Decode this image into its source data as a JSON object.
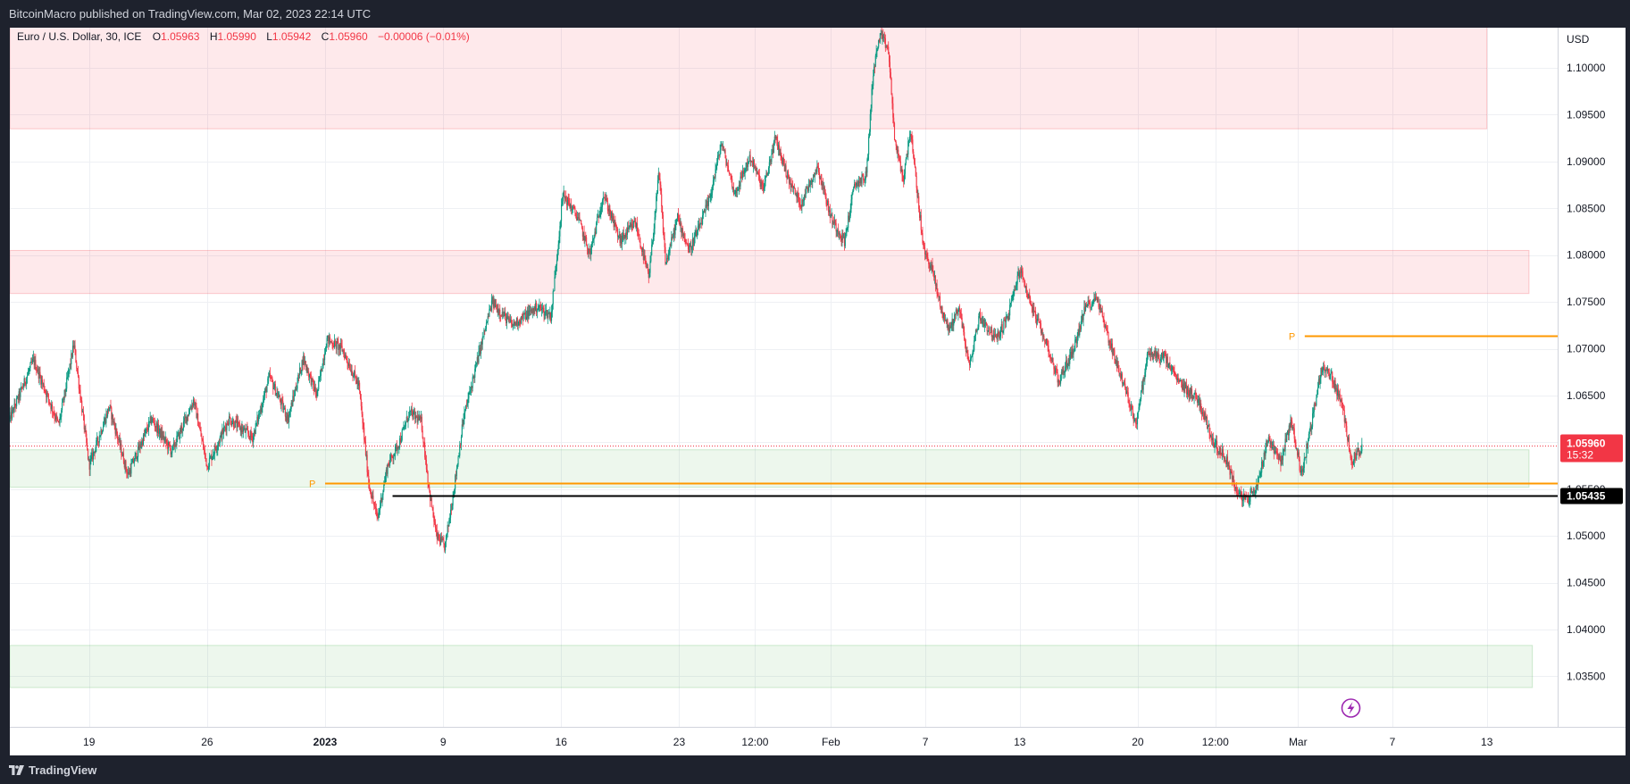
{
  "header": {
    "published": "BitcoinMacro published on TradingView.com, Mar 02, 2023 22:14 UTC"
  },
  "footer": {
    "brand": "TradingView",
    "logo_icon": "tradingview-logo-icon"
  },
  "legend": {
    "symbol": "Euro / U.S. Dollar, 30, ICE",
    "o_label": "O",
    "o_value": "1.05963",
    "h_label": "H",
    "h_value": "1.05990",
    "l_label": "L",
    "l_value": "1.05942",
    "c_label": "C",
    "c_value": "1.05960",
    "change": "−0.00006 (−0.01%)"
  },
  "chart_data": {
    "type": "candlestick",
    "currency": "USD",
    "y_ticks": [
      "1.03500",
      "1.04000",
      "1.04500",
      "1.05000",
      "1.05500",
      "1.06000",
      "1.06500",
      "1.07000",
      "1.07500",
      "1.08000",
      "1.08500",
      "1.09000",
      "1.09500",
      "1.10000"
    ],
    "ylim": [
      1.0296,
      1.1043
    ],
    "x_ticks": [
      {
        "label": "19",
        "t": 1.8
      },
      {
        "label": "26",
        "t": 8.8
      },
      {
        "label": "2023",
        "t": 15.8
      },
      {
        "label": "9",
        "t": 22.8
      },
      {
        "label": "16",
        "t": 29.8
      },
      {
        "label": "23",
        "t": 36.8
      },
      {
        "label": "12:00",
        "t": 41.3
      },
      {
        "label": "Feb",
        "t": 45.8
      },
      {
        "label": "7",
        "t": 51.4
      },
      {
        "label": "13",
        "t": 57.0
      },
      {
        "label": "20",
        "t": 64.0
      },
      {
        "label": "12:00",
        "t": 68.6
      },
      {
        "label": "Mar",
        "t": 73.5
      },
      {
        "label": "7",
        "t": 79.1
      },
      {
        "label": "13",
        "t": 84.7
      }
    ],
    "xlim": [
      -2.9,
      88.9
    ],
    "zones": [
      {
        "kind": "supply",
        "y1": 1.0935,
        "y2": 1.1045,
        "t1": -2.9,
        "t2": 84.7
      },
      {
        "kind": "supply",
        "y1": 1.0759,
        "y2": 1.0805,
        "t1": -2.9,
        "t2": 87.2
      },
      {
        "kind": "demand",
        "y1": 1.0552,
        "y2": 1.0592,
        "t1": -2.9,
        "t2": 87.2
      },
      {
        "kind": "demand",
        "y1": 1.0338,
        "y2": 1.0383,
        "t1": -2.9,
        "t2": 87.4
      }
    ],
    "pivot_lines": [
      {
        "label": "P",
        "y": 1.0556,
        "t1": 15.8,
        "t2": 88.9
      },
      {
        "label": "P",
        "y": 1.0714,
        "t1": 73.9,
        "t2": 88.9
      }
    ],
    "level_line": {
      "y": 1.05435,
      "t1": 19.8,
      "t2": 88.9,
      "label": "1.05435"
    },
    "last_price": {
      "y": 1.0596,
      "label": "1.05960",
      "countdown": "15:32"
    },
    "path": [
      [
        -2.9,
        1.0625
      ],
      [
        -1.5,
        1.0688
      ],
      [
        0.0,
        1.0618
      ],
      [
        0.9,
        1.0705
      ],
      [
        1.8,
        1.0575
      ],
      [
        3.0,
        1.0638
      ],
      [
        4.1,
        1.0565
      ],
      [
        5.5,
        1.0625
      ],
      [
        6.7,
        1.059
      ],
      [
        8.0,
        1.0645
      ],
      [
        8.8,
        1.0575
      ],
      [
        10.1,
        1.0625
      ],
      [
        11.5,
        1.0605
      ],
      [
        12.5,
        1.067
      ],
      [
        13.6,
        1.0625
      ],
      [
        14.5,
        1.069
      ],
      [
        15.3,
        1.065
      ],
      [
        15.9,
        1.071
      ],
      [
        16.8,
        1.07
      ],
      [
        17.8,
        1.066
      ],
      [
        18.4,
        1.0555
      ],
      [
        18.9,
        1.0518
      ],
      [
        19.5,
        1.0575
      ],
      [
        20.2,
        1.06
      ],
      [
        20.8,
        1.0632
      ],
      [
        21.5,
        1.0622
      ],
      [
        22.0,
        1.0545
      ],
      [
        22.4,
        1.05
      ],
      [
        22.9,
        1.0488
      ],
      [
        23.4,
        1.0545
      ],
      [
        24.0,
        1.0625
      ],
      [
        25.0,
        1.07
      ],
      [
        25.7,
        1.075
      ],
      [
        26.9,
        1.0725
      ],
      [
        28.4,
        1.0745
      ],
      [
        29.2,
        1.0735
      ],
      [
        29.9,
        1.0865
      ],
      [
        30.8,
        1.084
      ],
      [
        31.5,
        1.08
      ],
      [
        32.3,
        1.0865
      ],
      [
        33.3,
        1.0815
      ],
      [
        34.2,
        1.0835
      ],
      [
        35.0,
        1.0775
      ],
      [
        35.6,
        1.0888
      ],
      [
        36.0,
        1.079
      ],
      [
        36.7,
        1.084
      ],
      [
        37.4,
        1.0805
      ],
      [
        38.0,
        1.083
      ],
      [
        38.6,
        1.086
      ],
      [
        39.3,
        1.092
      ],
      [
        40.1,
        1.0865
      ],
      [
        41.0,
        1.0905
      ],
      [
        41.8,
        1.087
      ],
      [
        42.5,
        1.0925
      ],
      [
        43.3,
        1.088
      ],
      [
        44.0,
        1.0855
      ],
      [
        45.0,
        1.0895
      ],
      [
        45.8,
        1.084
      ],
      [
        46.6,
        1.0815
      ],
      [
        47.2,
        1.0875
      ],
      [
        47.9,
        1.0885
      ],
      [
        48.3,
        1.0995
      ],
      [
        48.7,
        1.1035
      ],
      [
        49.2,
        1.102
      ],
      [
        49.6,
        1.092
      ],
      [
        50.1,
        1.088
      ],
      [
        50.5,
        1.0935
      ],
      [
        50.9,
        1.087
      ],
      [
        51.3,
        1.0805
      ],
      [
        51.8,
        1.0785
      ],
      [
        52.3,
        1.0745
      ],
      [
        52.8,
        1.072
      ],
      [
        53.4,
        1.0745
      ],
      [
        54.0,
        1.068
      ],
      [
        54.6,
        1.0735
      ],
      [
        55.6,
        1.071
      ],
      [
        56.3,
        1.0735
      ],
      [
        57.0,
        1.0785
      ],
      [
        57.9,
        1.0735
      ],
      [
        58.6,
        1.0705
      ],
      [
        59.3,
        1.0665
      ],
      [
        60.2,
        1.07
      ],
      [
        60.9,
        1.0745
      ],
      [
        61.6,
        1.0755
      ],
      [
        62.2,
        1.0715
      ],
      [
        63.1,
        1.0665
      ],
      [
        63.9,
        1.062
      ],
      [
        64.6,
        1.0695
      ],
      [
        65.6,
        1.069
      ],
      [
        66.4,
        1.0665
      ],
      [
        67.6,
        1.0645
      ],
      [
        68.5,
        1.06
      ],
      [
        69.3,
        1.058
      ],
      [
        69.9,
        1.0545
      ],
      [
        70.5,
        1.0538
      ],
      [
        71.1,
        1.0555
      ],
      [
        71.7,
        1.0605
      ],
      [
        72.5,
        1.058
      ],
      [
        73.1,
        1.0625
      ],
      [
        73.7,
        1.0565
      ],
      [
        74.3,
        1.062
      ],
      [
        74.9,
        1.068
      ],
      [
        75.5,
        1.067
      ],
      [
        76.1,
        1.064
      ],
      [
        76.7,
        1.058
      ],
      [
        77.3,
        1.0596
      ]
    ]
  }
}
